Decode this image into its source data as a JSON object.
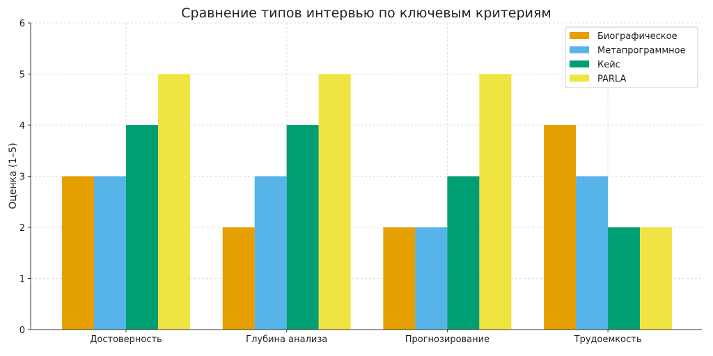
{
  "chart_data": {
    "type": "bar",
    "title": "Сравнение типов интервью по ключевым критериям",
    "xlabel": "",
    "ylabel": "Оценка (1–5)",
    "ylim": [
      0,
      6
    ],
    "yticks": [
      "0",
      "1",
      "2",
      "3",
      "4",
      "5",
      "6"
    ],
    "grid": true,
    "legend_position": "top-right",
    "categories": [
      "Достоверность",
      "Глубина анализа",
      "Прогнозирование",
      "Трудоемкость"
    ],
    "series": [
      {
        "name": "Биографическое",
        "color": "#E69F00",
        "values": [
          3,
          2,
          2,
          4
        ]
      },
      {
        "name": "Метапрограммное",
        "color": "#56B4E9",
        "values": [
          3,
          3,
          2,
          3
        ]
      },
      {
        "name": "Кейс",
        "color": "#009E73",
        "values": [
          4,
          4,
          3,
          2
        ]
      },
      {
        "name": "PARLA",
        "color": "#F0E442",
        "values": [
          5,
          5,
          5,
          2
        ]
      }
    ]
  }
}
